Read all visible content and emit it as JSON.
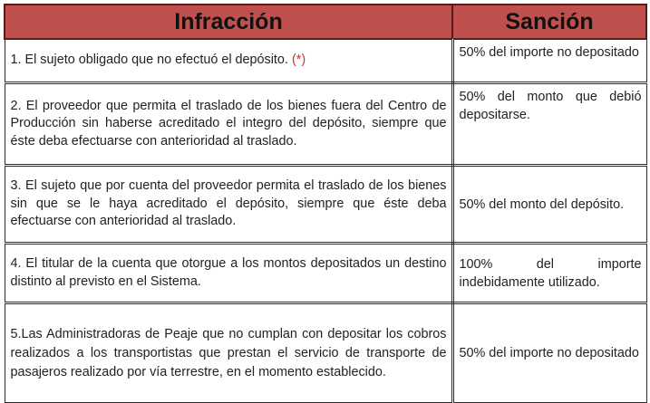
{
  "header": {
    "infraccion": "Infracción",
    "sancion": "Sanción"
  },
  "rows": [
    {
      "infraccion": "1. El sujeto obligado que no efectuó el depósito.",
      "mark": "(*)",
      "sancion": "50% del importe no depositado"
    },
    {
      "infraccion": "2. El proveedor que permita el traslado de los bienes fuera del Centro de Producción sin haberse acreditado el integro del depósito, siempre que éste deba efectuarse con anterioridad al traslado.",
      "sancion": "50% del monto que debió depositarse."
    },
    {
      "infraccion": "3. El sujeto que por cuenta del proveedor permita el traslado de los bienes sin que se le haya acreditado el depósito, siempre que éste deba efectuarse con anterioridad al traslado.",
      "sancion": "50% del monto del depósito."
    },
    {
      "infraccion": "4. El titular de la cuenta que otorgue a los montos depositados un destino distinto al previsto en el Sistema.",
      "sancion": "100% del importe indebidamente utilizado."
    },
    {
      "infraccion": "5.Las Administradoras de Peaje que no cumplan con depositar los cobros realizados a los transportistas que prestan el servicio de transporte de pasajeros realizado por vía terrestre, en el momento establecido.",
      "sancion": "50% del importe no depositado"
    }
  ]
}
